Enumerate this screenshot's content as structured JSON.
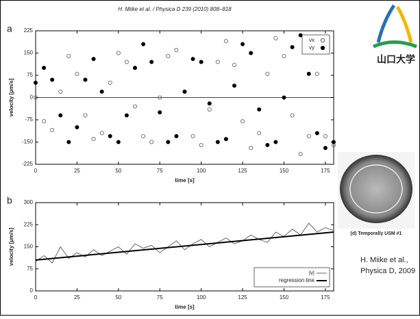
{
  "header": "H. Miike et al. / Physica D 239 (2010) 808–818",
  "logo": {
    "text": "山口大学"
  },
  "image_caption": "(d) Temporally USM #1",
  "citation": [
    "H. Miike et al.,",
    "Physica D, 2009"
  ],
  "chart_data": [
    {
      "type": "scatter",
      "panel_label": "a",
      "xlabel": "time [s]",
      "ylabel": "velocity [µm/s]",
      "xlim": [
        0,
        180
      ],
      "xticks": [
        0,
        25,
        50,
        75,
        100,
        125,
        150,
        175
      ],
      "ylim": [
        -225,
        225
      ],
      "yticks": [
        -225,
        -150,
        -75,
        0,
        75,
        150,
        225
      ],
      "zero_line": true,
      "legend": "upper right",
      "x": [
        0,
        5,
        10,
        15,
        20,
        25,
        30,
        35,
        40,
        45,
        50,
        55,
        60,
        65,
        70,
        75,
        80,
        85,
        90,
        95,
        100,
        105,
        110,
        115,
        120,
        125,
        130,
        135,
        140,
        145,
        150,
        155,
        160,
        165,
        170,
        175,
        180
      ],
      "series": [
        {
          "name": "vx",
          "color": "#555555",
          "marker": "open",
          "values": [
            0,
            -80,
            -110,
            20,
            140,
            80,
            -60,
            -140,
            -120,
            50,
            150,
            120,
            -30,
            -130,
            -150,
            0,
            140,
            160,
            20,
            -130,
            -160,
            -40,
            120,
            190,
            110,
            -80,
            -170,
            -120,
            80,
            200,
            140,
            -60,
            -190,
            -130,
            80,
            -130,
            -160
          ]
        },
        {
          "name": "vy",
          "color": "#000000",
          "marker": "filled",
          "values": [
            50,
            100,
            60,
            -60,
            -150,
            -100,
            60,
            130,
            20,
            -130,
            -150,
            -60,
            100,
            180,
            120,
            -50,
            -150,
            -130,
            20,
            130,
            120,
            -20,
            -150,
            -140,
            40,
            180,
            150,
            -40,
            -160,
            -150,
            0,
            170,
            210,
            80,
            -120,
            -170,
            -150
          ]
        }
      ]
    },
    {
      "type": "line",
      "panel_label": "b",
      "xlabel": "time [s]",
      "ylabel": "velocity [µm/s]",
      "xlim": [
        0,
        180
      ],
      "xticks": [
        0,
        25,
        50,
        75,
        100,
        125,
        150,
        175
      ],
      "ylim": [
        0,
        300
      ],
      "yticks": [
        0,
        75,
        150,
        225,
        300
      ],
      "legend": "lower right",
      "series": [
        {
          "name": "|v|",
          "color": "#666666",
          "width": 1,
          "x": [
            0,
            5,
            10,
            15,
            20,
            25,
            30,
            35,
            40,
            45,
            50,
            55,
            60,
            65,
            70,
            75,
            80,
            85,
            90,
            95,
            100,
            105,
            110,
            115,
            120,
            125,
            130,
            135,
            140,
            145,
            150,
            155,
            160,
            165,
            170,
            175,
            180
          ],
          "values": [
            100,
            120,
            95,
            150,
            110,
            130,
            115,
            140,
            120,
            135,
            150,
            125,
            160,
            145,
            155,
            130,
            150,
            170,
            140,
            160,
            175,
            150,
            165,
            180,
            160,
            170,
            190,
            175,
            165,
            200,
            185,
            210,
            190,
            230,
            200,
            215,
            205
          ]
        },
        {
          "name": "regression line",
          "color": "#000000",
          "width": 2,
          "x": [
            0,
            180
          ],
          "values": [
            105,
            200
          ]
        }
      ]
    }
  ]
}
